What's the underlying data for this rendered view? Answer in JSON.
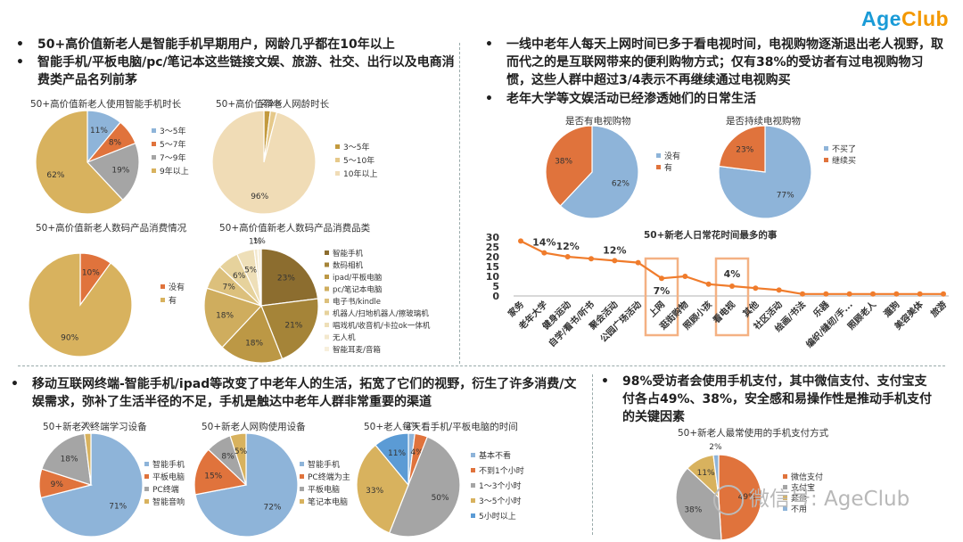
{
  "logo": {
    "part1": "Age",
    "part2": "Club",
    "color1": "#1a9bd7",
    "color2": "#f39800"
  },
  "bullets": {
    "tl1": "50+高价值新老人是智能手机早期用户，网龄几乎都在10年以上",
    "tl2": "智能手机/平板电脑/pc/笔记本这些链接文娱、旅游、社交、出行以及电商消费类产品名列前茅",
    "tr1": "一线中老年人每天上网时间已多于看电视时间，电视购物逐渐退出老人视野，取而代之的是互联网带来的便利购物方式；仅有38%的受访者有过电视购物习惯，这些人群中超过3/4表示不再继续通过电视购买",
    "tr2": "老年大学等文娱活动已经渗透她们的日常生活",
    "bl1": "移动互联网终端-智能手机/ipad等改变了中老年人的生活，拓宽了它们的视野，衍生了许多消费/文娱需求，弥补了生活半径的不足，手机是触达中老年人群非常重要的渠道",
    "br1": "98%受访者会使用手机支付，其中微信支付、支付宝支付各占49%、38%，安全感和易操作性是推动手机支付的关键因素"
  },
  "watermark": "微信号: AgeClub",
  "chart_data": [
    {
      "id": "phone_years",
      "type": "pie",
      "title": "50+高价值新老人使用智能手机时长",
      "series": [
        {
          "label": "3～5年",
          "value": 11,
          "color": "#8eb4d9"
        },
        {
          "label": "5～7年",
          "value": 8,
          "color": "#e0733c"
        },
        {
          "label": "7～9年",
          "value": 19,
          "color": "#a5a5a5"
        },
        {
          "label": "9年以上",
          "value": 62,
          "color": "#d8b25e"
        }
      ],
      "data_labels": [
        "11%",
        "8%",
        "19%",
        "62%"
      ],
      "legend": "right"
    },
    {
      "id": "net_age",
      "type": "pie",
      "title": "50+高价值新老人网龄时长",
      "series": [
        {
          "label": "3～5年",
          "value": 2,
          "color": "#c39a3e"
        },
        {
          "label": "5～10年",
          "value": 2,
          "color": "#e6c98a"
        },
        {
          "label": "10年以上",
          "value": 96,
          "color": "#f0dcb6"
        }
      ],
      "data_labels": [
        "2%",
        "2%",
        "96%"
      ],
      "legend": "right"
    },
    {
      "id": "digital_spend",
      "type": "pie",
      "title": "50+高价值新老人数码产品消费情况",
      "series": [
        {
          "label": "没有",
          "value": 10,
          "color": "#e0733c"
        },
        {
          "label": "有",
          "value": 90,
          "color": "#d8b25e"
        }
      ],
      "data_labels": [
        "10%",
        "90%"
      ],
      "legend": "right"
    },
    {
      "id": "digital_category",
      "type": "pie",
      "title": "50+高价值新老人数码产品消费品类",
      "series": [
        {
          "label": "智能手机",
          "value": 23,
          "color": "#8c6d2f"
        },
        {
          "label": "数码相机",
          "value": 21,
          "color": "#a58438"
        },
        {
          "label": "ipad/平板电脑",
          "value": 18,
          "color": "#bc9845"
        },
        {
          "label": "pc/笔记本电脑",
          "value": 18,
          "color": "#cfad5e"
        },
        {
          "label": "电子书/kindle",
          "value": 7,
          "color": "#dcc07c"
        },
        {
          "label": "机器人/扫地机器人/擦玻璃机",
          "value": 6,
          "color": "#e6d29c"
        },
        {
          "label": "唱戏机/收音机/卡拉ok一体机",
          "value": 5,
          "color": "#eedfb8"
        },
        {
          "label": "无人机",
          "value": 1,
          "color": "#f3e8cd"
        },
        {
          "label": "智能耳麦/音箱",
          "value": 1,
          "color": "#f7efdc"
        }
      ],
      "data_labels": [
        "23%",
        "21%",
        "18%",
        "18%",
        "7%",
        "6%",
        "5%",
        "1%",
        "1%"
      ],
      "legend": "right"
    },
    {
      "id": "tv_shopping",
      "type": "pie",
      "title": "是否有电视购物",
      "series": [
        {
          "label": "没有",
          "value": 62,
          "color": "#8eb4d9"
        },
        {
          "label": "有",
          "value": 38,
          "color": "#e0733c"
        }
      ],
      "data_labels": [
        "62%",
        "38%"
      ],
      "legend": "right"
    },
    {
      "id": "tv_continue",
      "type": "pie",
      "title": "是否持续电视购物",
      "series": [
        {
          "label": "不买了",
          "value": 77,
          "color": "#8eb4d9"
        },
        {
          "label": "继续买",
          "value": 23,
          "color": "#e0733c"
        }
      ],
      "data_labels": [
        "77%",
        "23%"
      ],
      "legend": "right"
    },
    {
      "id": "daily_time",
      "type": "line",
      "title": "50+新老人日常花时间最多的事",
      "categories": [
        "家务",
        "老年大学",
        "健身运动",
        "自学/看书/听书",
        "聚会活动",
        "公园广场活动",
        "上网",
        "逛街购物",
        "照顾小孩",
        "看电视",
        "其他",
        "社区活动",
        "绘画/书法",
        "乐器",
        "编织/缝纫/手...",
        "照顾老人",
        "遛狗",
        "美容美体",
        "旅游"
      ],
      "values": [
        28,
        22,
        20,
        19,
        18,
        17,
        9,
        10,
        6,
        5,
        4,
        3,
        1,
        1,
        1,
        1,
        1,
        1,
        1
      ],
      "data_labels": {
        "1": "14%",
        "2": "12%",
        "4": "12%",
        "6": "7%",
        "9": "4%"
      },
      "highlight": [
        "上网",
        "看电视"
      ],
      "yticks": [
        0,
        5,
        10,
        15,
        20,
        25,
        30
      ],
      "ylim": [
        0,
        30
      ],
      "color": "#f07c2c",
      "highlight_color": "#f4b183"
    },
    {
      "id": "learning_device",
      "type": "pie",
      "title": "50+新老人终端学习设备",
      "series": [
        {
          "label": "智能手机",
          "value": 71,
          "color": "#8eb4d9"
        },
        {
          "label": "平板电脑",
          "value": 9,
          "color": "#e0733c"
        },
        {
          "label": "PC终端",
          "value": 18,
          "color": "#a5a5a5"
        },
        {
          "label": "智能音响",
          "value": 2,
          "color": "#d8b25e"
        }
      ],
      "data_labels": [
        "71%",
        "9%",
        "18%",
        "2%"
      ],
      "legend": "right"
    },
    {
      "id": "shopping_device",
      "type": "pie",
      "title": "50+新老人网购使用设备",
      "series": [
        {
          "label": "智能手机",
          "value": 72,
          "color": "#8eb4d9"
        },
        {
          "label": "PC终端为主",
          "value": 15,
          "color": "#e0733c"
        },
        {
          "label": "平板电脑",
          "value": 8,
          "color": "#a5a5a5"
        },
        {
          "label": "笔记本电脑",
          "value": 5,
          "color": "#d8b25e"
        }
      ],
      "data_labels": [
        "72%",
        "15%",
        "8%",
        "5%"
      ],
      "legend": "right"
    },
    {
      "id": "screen_time",
      "type": "pie",
      "title": "50+老人每天看手机/平板电脑的时间",
      "series": [
        {
          "label": "基本不看",
          "value": 2,
          "color": "#8eb4d9"
        },
        {
          "label": "不到1个小时",
          "value": 4,
          "color": "#e0733c"
        },
        {
          "label": "1～3个小时",
          "value": 50,
          "color": "#a5a5a5"
        },
        {
          "label": "3～5个小时",
          "value": 33,
          "color": "#d8b25e"
        },
        {
          "label": "5小时以上",
          "value": 11,
          "color": "#5b9bd5"
        }
      ],
      "data_labels": [
        "2%",
        "4%",
        "50%",
        "33%",
        "11%"
      ],
      "legend": "right"
    },
    {
      "id": "pay_method",
      "type": "pie",
      "title": "50+新老人最常使用的手机支付方式",
      "series": [
        {
          "label": "微信支付",
          "value": 49,
          "color": "#e0733c"
        },
        {
          "label": "支付宝",
          "value": 38,
          "color": "#a5a5a5"
        },
        {
          "label": "其他",
          "value": 11,
          "color": "#d8b25e"
        },
        {
          "label": "不用",
          "value": 2,
          "color": "#8eb4d9"
        }
      ],
      "data_labels": [
        "49%",
        "38%",
        "11%",
        "2%"
      ],
      "legend": "right"
    }
  ]
}
